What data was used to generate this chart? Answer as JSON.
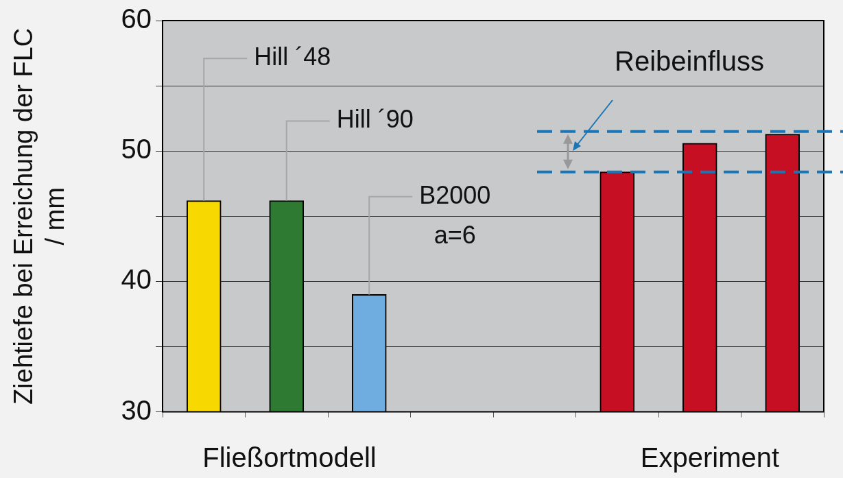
{
  "chart_data": {
    "type": "bar",
    "ylabel": "Ziehtiefe bei Erreichung der FLC / mm",
    "categories": [
      null,
      null,
      null,
      null,
      null,
      null,
      null,
      null
    ],
    "series": [
      {
        "name": "Hill ´48",
        "color": "#f7d800",
        "values": [
          46.2,
          null,
          null,
          null,
          null,
          null,
          null,
          null
        ]
      },
      {
        "name": "Hill ´90",
        "color": "#2e7a33",
        "values": [
          null,
          46.2,
          null,
          null,
          null,
          null,
          null,
          null
        ]
      },
      {
        "name": "B2000\na=6",
        "color": "#6fade0",
        "values": [
          null,
          null,
          39.0,
          null,
          null,
          null,
          null,
          null
        ]
      },
      {
        "color": "#c60f23",
        "values": [
          null,
          null,
          null,
          null,
          null,
          48.4,
          50.6,
          51.3
        ]
      }
    ],
    "ylim": [
      30,
      60
    ],
    "yticks": [
      30,
      {
        "value": 35,
        "label": null
      },
      40,
      {
        "value": 45,
        "label": null
      },
      50,
      {
        "value": 55,
        "label": null
      },
      60
    ],
    "grid": "y",
    "legend": false,
    "ref_lines": [
      {
        "axis": "y",
        "value": 51.5,
        "color": "#1a75b4",
        "line_style": "dashed"
      },
      {
        "axis": "y",
        "value": 48.4,
        "color": "#1a75b4",
        "line_style": "dashed"
      }
    ],
    "annotations": [
      "Fließortmodell",
      "Experiment",
      "Reibeinfluss"
    ]
  }
}
